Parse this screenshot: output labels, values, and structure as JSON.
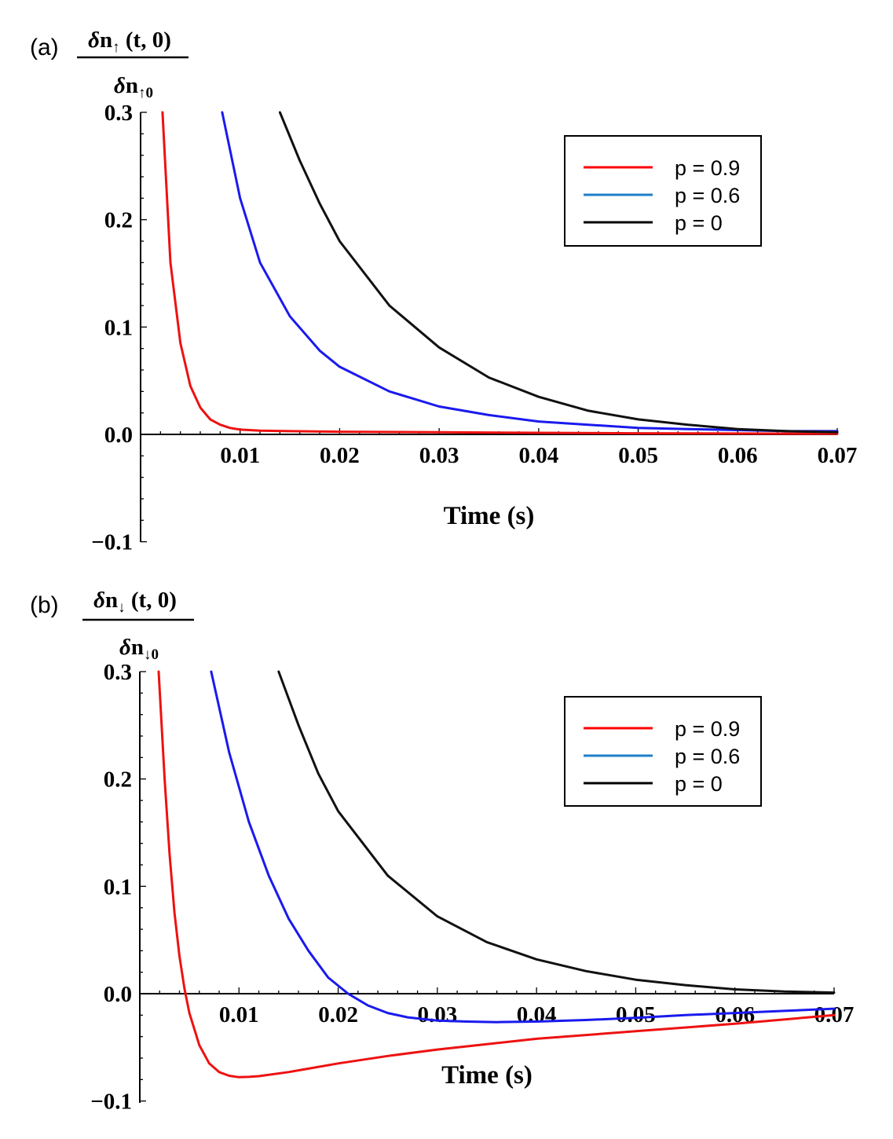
{
  "chart_data": [
    {
      "type": "line",
      "panel_label": "(a)",
      "ylabel_num_main": "δn",
      "ylabel_num_sub": "↑",
      "ylabel_num_args": " (t, 0)",
      "ylabel_den_main": "δn",
      "ylabel_den_sub": "↑0",
      "xlabel": "Time (s)",
      "xlim": [
        0,
        0.07
      ],
      "ylim": [
        -0.1,
        0.3
      ],
      "x_ticks": [
        "0.01",
        "0.02",
        "0.03",
        "0.04",
        "0.05",
        "0.06",
        "0.07"
      ],
      "y_ticks": [
        "0.3",
        "0.2",
        "0.1",
        "0.0",
        "−0.1"
      ],
      "legend_position": "top-right",
      "series": [
        {
          "name": "p = 0.9",
          "color": "#ee1111",
          "legend_color": "#ff0000",
          "x": [
            0.0022,
            0.003,
            0.004,
            0.005,
            0.006,
            0.007,
            0.008,
            0.009,
            0.01,
            0.012,
            0.015,
            0.02,
            0.03,
            0.04,
            0.05,
            0.06,
            0.07
          ],
          "y": [
            0.3,
            0.16,
            0.085,
            0.045,
            0.025,
            0.014,
            0.009,
            0.006,
            0.0045,
            0.0035,
            0.003,
            0.0025,
            0.002,
            0.0015,
            0.001,
            0.0008,
            0.0005
          ]
        },
        {
          "name": "p = 0.6",
          "color": "#1a1aee",
          "legend_color": "#1e7fc8",
          "x": [
            0.0082,
            0.01,
            0.012,
            0.015,
            0.018,
            0.02,
            0.025,
            0.03,
            0.035,
            0.04,
            0.045,
            0.05,
            0.055,
            0.06,
            0.065,
            0.07
          ],
          "y": [
            0.3,
            0.22,
            0.16,
            0.11,
            0.078,
            0.063,
            0.04,
            0.026,
            0.018,
            0.012,
            0.009,
            0.006,
            0.005,
            0.004,
            0.003,
            0.003
          ]
        },
        {
          "name": "p = 0",
          "color": "#111111",
          "legend_color": "#000000",
          "x": [
            0.014,
            0.016,
            0.018,
            0.02,
            0.025,
            0.03,
            0.035,
            0.04,
            0.045,
            0.05,
            0.055,
            0.06,
            0.065,
            0.07
          ],
          "y": [
            0.3,
            0.255,
            0.215,
            0.18,
            0.12,
            0.081,
            0.053,
            0.035,
            0.022,
            0.014,
            0.009,
            0.005,
            0.003,
            0.002
          ]
        }
      ]
    },
    {
      "type": "line",
      "panel_label": "(b)",
      "ylabel_num_main": "δn",
      "ylabel_num_sub": "↓",
      "ylabel_num_args": " (t, 0)",
      "ylabel_den_main": "δn",
      "ylabel_den_sub": "↓0",
      "xlabel": "Time (s)",
      "xlim": [
        0,
        0.07
      ],
      "ylim": [
        -0.1,
        0.3
      ],
      "x_ticks": [
        "0.01",
        "0.02",
        "0.03",
        "0.04",
        "0.05",
        "0.06",
        "0.07"
      ],
      "y_ticks": [
        "0.3",
        "0.2",
        "0.1",
        "0.0",
        "−0.1"
      ],
      "legend_position": "top-right",
      "series": [
        {
          "name": "p = 0.9",
          "color": "#ee1111",
          "legend_color": "#ff0000",
          "x": [
            0.0019,
            0.0025,
            0.003,
            0.0035,
            0.004,
            0.0045,
            0.005,
            0.006,
            0.007,
            0.008,
            0.009,
            0.01,
            0.011,
            0.012,
            0.015,
            0.02,
            0.025,
            0.03,
            0.035,
            0.04,
            0.05,
            0.06,
            0.07
          ],
          "y": [
            0.3,
            0.2,
            0.13,
            0.075,
            0.035,
            0.005,
            -0.018,
            -0.048,
            -0.065,
            -0.073,
            -0.0765,
            -0.0778,
            -0.0775,
            -0.0768,
            -0.073,
            -0.065,
            -0.058,
            -0.052,
            -0.047,
            -0.042,
            -0.035,
            -0.028,
            -0.02
          ]
        },
        {
          "name": "p = 0.6",
          "color": "#1a1aee",
          "legend_color": "#1e7fc8",
          "x": [
            0.0072,
            0.009,
            0.011,
            0.013,
            0.015,
            0.017,
            0.019,
            0.021,
            0.023,
            0.025,
            0.027,
            0.03,
            0.033,
            0.036,
            0.04,
            0.045,
            0.05,
            0.055,
            0.06,
            0.065,
            0.07
          ],
          "y": [
            0.3,
            0.225,
            0.16,
            0.11,
            0.07,
            0.04,
            0.015,
            0.0,
            -0.011,
            -0.018,
            -0.022,
            -0.025,
            -0.026,
            -0.0265,
            -0.026,
            -0.0245,
            -0.0225,
            -0.02,
            -0.018,
            -0.016,
            -0.014
          ]
        },
        {
          "name": "p = 0",
          "color": "#111111",
          "legend_color": "#000000",
          "x": [
            0.014,
            0.016,
            0.018,
            0.02,
            0.025,
            0.03,
            0.035,
            0.04,
            0.045,
            0.05,
            0.055,
            0.06,
            0.065,
            0.07
          ],
          "y": [
            0.3,
            0.25,
            0.205,
            0.17,
            0.11,
            0.072,
            0.048,
            0.032,
            0.021,
            0.013,
            0.008,
            0.004,
            0.002,
            0.001
          ]
        }
      ]
    }
  ]
}
